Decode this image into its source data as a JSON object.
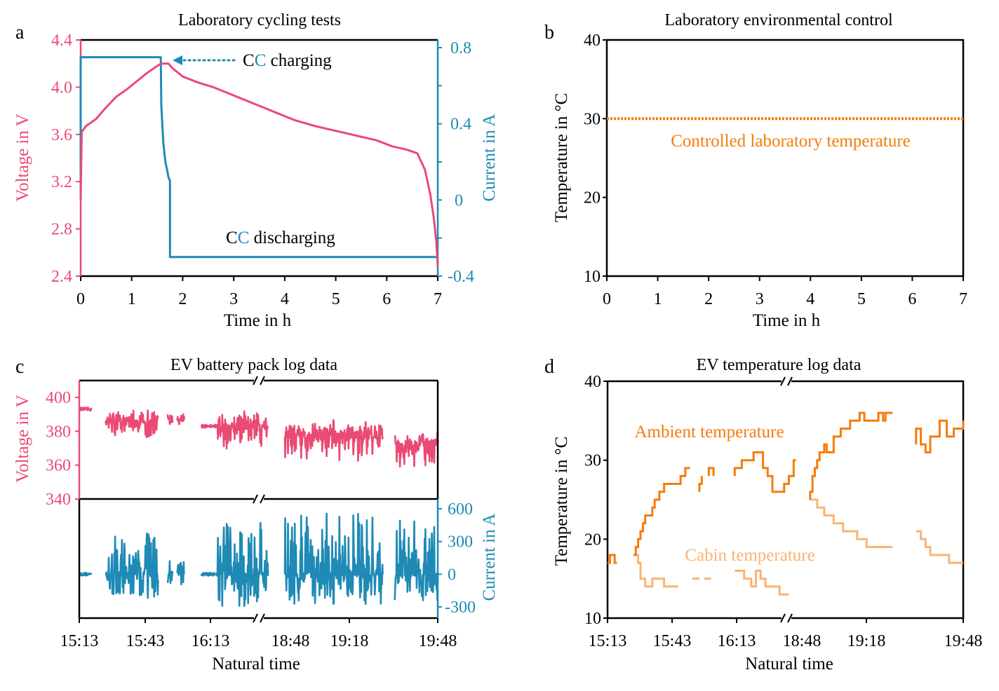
{
  "colors": {
    "voltage": "#ea4a74",
    "current": "#1f8ab5",
    "ambient": "#f57c0c",
    "cabin": "#fbb373",
    "lab_temp": "#f57c0c",
    "axis": "#000000"
  },
  "chart_data": [
    {
      "id": "a",
      "type": "line",
      "panel_letter": "a",
      "title": "Laboratory cycling tests",
      "xlabel": "Time in h",
      "ylabel": "Voltage in V",
      "y2label": "Current in A",
      "xlim": [
        0,
        7
      ],
      "ylim": [
        2.4,
        4.4
      ],
      "y2lim": [
        -0.4,
        0.85
      ],
      "xticks": [
        "0",
        "1",
        "2",
        "3",
        "4",
        "5",
        "6",
        "7"
      ],
      "xtick_values": [
        0,
        1,
        2,
        3,
        4,
        5,
        6,
        7
      ],
      "yticks": [
        "2.4",
        "2.8",
        "3.2",
        "3.6",
        "4.0",
        "4.4"
      ],
      "ytick_values": [
        2.4,
        2.8,
        3.2,
        3.6,
        4.0,
        4.4
      ],
      "y2ticks": [
        "-0.4",
        "0",
        "0.4",
        "0.8"
      ],
      "y2tick_values": [
        -0.4,
        0,
        0.4,
        0.8
      ],
      "annotations": [
        {
          "prefix": "C",
          "highlight": "C",
          "suffix": " charging",
          "x": 3.3,
          "y": 4.2
        },
        {
          "prefix": "C",
          "highlight": "C",
          "suffix": " discharging",
          "x": 2.9,
          "y": 2.74
        }
      ],
      "series": [
        {
          "name": "Voltage",
          "axis": "left",
          "color_key": "voltage",
          "x": [
            0,
            0.02,
            0.1,
            0.3,
            0.5,
            0.7,
            0.9,
            1.1,
            1.3,
            1.5,
            1.58,
            1.62,
            1.72,
            1.8,
            2.0,
            2.3,
            2.6,
            3.0,
            3.4,
            3.8,
            4.2,
            4.6,
            5.0,
            5.4,
            5.8,
            6.1,
            6.4,
            6.6,
            6.75,
            6.85,
            6.92,
            6.97,
            7.0
          ],
          "y": [
            3.05,
            3.62,
            3.67,
            3.73,
            3.83,
            3.92,
            3.98,
            4.05,
            4.12,
            4.18,
            4.2,
            4.2,
            4.2,
            4.16,
            4.09,
            4.04,
            4.0,
            3.93,
            3.86,
            3.79,
            3.72,
            3.67,
            3.63,
            3.59,
            3.55,
            3.5,
            3.47,
            3.44,
            3.3,
            3.1,
            2.9,
            2.7,
            2.48
          ]
        },
        {
          "name": "Current",
          "axis": "right",
          "color_key": "current",
          "x": [
            0,
            0.0,
            1.57,
            1.58,
            1.6,
            1.62,
            1.66,
            1.7,
            1.72,
            1.75,
            1.75,
            7.0
          ],
          "y": [
            0.0,
            0.75,
            0.75,
            0.5,
            0.4,
            0.3,
            0.2,
            0.15,
            0.12,
            0.1,
            -0.3,
            -0.3
          ]
        }
      ]
    },
    {
      "id": "b",
      "type": "line",
      "panel_letter": "b",
      "title": "Laboratory environmental control",
      "xlabel": "Time in h",
      "ylabel": "Temperature in °C",
      "xlim": [
        0,
        7
      ],
      "ylim": [
        10,
        40
      ],
      "xticks": [
        "0",
        "1",
        "2",
        "3",
        "4",
        "5",
        "6",
        "7"
      ],
      "xtick_values": [
        0,
        1,
        2,
        3,
        4,
        5,
        6,
        7
      ],
      "yticks": [
        "10",
        "20",
        "30",
        "40"
      ],
      "ytick_values": [
        10,
        20,
        30,
        40
      ],
      "annotations": [
        {
          "text": "Controlled laboratory temperature",
          "x": 3.6,
          "y": 27
        }
      ],
      "series": [
        {
          "name": "Controlled laboratory temperature",
          "color_key": "lab_temp",
          "style": "dotted",
          "x": [
            0,
            7
          ],
          "y": [
            30,
            30
          ]
        }
      ]
    },
    {
      "id": "c",
      "type": "line",
      "panel_letter": "c",
      "title": "EV battery pack log data",
      "xlabel": "Natural time",
      "ylabel": "Voltage in V",
      "y2label": "Current in A",
      "x_axis_break": true,
      "xticks": [
        "15:13",
        "15:43",
        "16:13",
        "18:48",
        "19:18",
        "19:48"
      ],
      "xtick_values": [
        0,
        30,
        60,
        90,
        120,
        150
      ],
      "xlim": [
        0,
        150
      ],
      "ylim": [
        340,
        410
      ],
      "yticks": [
        "340",
        "360",
        "380",
        "400"
      ],
      "ytick_values": [
        340,
        360,
        380,
        400
      ],
      "y2lim": [
        -350,
        650
      ],
      "y2ticks": [
        "-300",
        "0",
        "300",
        "600"
      ],
      "y2tick_values": [
        -300,
        0,
        300,
        600
      ],
      "segments_minutes": [
        [
          0,
          5
        ],
        [
          11,
          33
        ],
        [
          37,
          39
        ],
        [
          41,
          44
        ],
        [
          51,
          79
        ],
        [
          86,
          127
        ],
        [
          132,
          150
        ]
      ],
      "series": [
        {
          "name": "Voltage",
          "axis": "left",
          "color_key": "voltage",
          "mean_by_segment": [
            393,
            386,
            387,
            388,
            383,
            378,
            372
          ],
          "range_by_segment": [
            [
              387,
              395
            ],
            [
              365,
              401
            ],
            [
              382,
              390
            ],
            [
              384,
              390
            ],
            [
              364,
              394
            ],
            [
              358,
              389
            ],
            [
              345,
              385
            ]
          ]
        },
        {
          "name": "Current",
          "axis": "right",
          "color_key": "current",
          "mean_by_segment": [
            0,
            0,
            0,
            0,
            0,
            0,
            0
          ],
          "range_by_segment": [
            [
              -20,
              30
            ],
            [
              -230,
              400
            ],
            [
              -90,
              140
            ],
            [
              -170,
              150
            ],
            [
              -300,
              480
            ],
            [
              -290,
              560
            ],
            [
              -240,
              550
            ]
          ]
        }
      ]
    },
    {
      "id": "d",
      "type": "line",
      "panel_letter": "d",
      "title": "EV temperature log data",
      "xlabel": "Natural time",
      "ylabel": "Temperature in °C",
      "x_axis_break": true,
      "xticks": [
        "15:13",
        "15:43",
        "16:13",
        "18:48",
        "19:18",
        "19:48"
      ],
      "xtick_values": [
        0,
        30,
        60,
        91,
        121,
        151
      ],
      "xlim": [
        0,
        151
      ],
      "ylim": [
        10,
        40
      ],
      "yticks": [
        "10",
        "20",
        "30",
        "40"
      ],
      "ytick_values": [
        10,
        20,
        30,
        40
      ],
      "annotations": [
        {
          "text": "Ambient temperature",
          "color_key": "ambient",
          "x": 33,
          "y": 34
        },
        {
          "text": "Cabin temperature",
          "color_key": "cabin",
          "x": 40,
          "y": 18.8
        }
      ],
      "series": [
        {
          "name": "Ambient temperature",
          "color_key": "ambient",
          "segments": [
            {
              "x": [
                0,
                1,
                1,
                3,
                3,
                4
              ],
              "y": [
                17,
                17,
                18,
                18,
                17,
                17
              ]
            },
            {
              "x": [
                11,
                12,
                12,
                13,
                13,
                14,
                14,
                15,
                15,
                16,
                16,
                19,
                19,
                20,
                20,
                22,
                22,
                24,
                24,
                26,
                26,
                31,
                31,
                33,
                33,
                35
              ],
              "y": [
                18,
                18,
                19,
                19,
                20,
                20,
                21,
                21,
                22,
                22,
                23,
                23,
                24,
                24,
                25,
                25,
                26,
                26,
                27,
                27,
                27,
                27,
                28,
                28,
                29,
                29
              ]
            },
            {
              "x": [
                39,
                39,
                40,
                40
              ],
              "y": [
                26,
                27,
                27,
                28
              ]
            },
            {
              "x": [
                43,
                43,
                45,
                45
              ],
              "y": [
                28,
                29,
                29,
                28
              ]
            },
            {
              "x": [
                54,
                54,
                57,
                57,
                62,
                62,
                66,
                66,
                68,
                68,
                70,
                70,
                75,
                75,
                77,
                77,
                79,
                79,
                80
              ],
              "y": [
                28,
                29,
                29,
                30,
                30,
                31,
                31,
                29,
                29,
                28,
                28,
                26,
                26,
                27,
                27,
                28,
                28,
                30,
                30
              ]
            },
            {
              "x": [
                86,
                86,
                87,
                87,
                88,
                88,
                89,
                89,
                90,
                90,
                92,
                92,
                93,
                93,
                96,
                96,
                99,
                99,
                103,
                103,
                107,
                107,
                109,
                109,
                115,
                115,
                117,
                117,
                118,
                118,
                121
              ],
              "y": [
                25,
                26,
                26,
                28,
                28,
                29,
                29,
                30,
                30,
                31,
                31,
                32,
                32,
                31,
                31,
                33,
                33,
                34,
                34,
                35,
                35,
                36,
                36,
                35,
                35,
                36,
                36,
                35,
                35,
                36,
                36
              ]
            },
            {
              "x": [
                131,
                131,
                133,
                133,
                135,
                135,
                137,
                137,
                141,
                141,
                144,
                144,
                147,
                147,
                151,
                151
              ],
              "y": [
                32,
                34,
                34,
                32,
                32,
                31,
                31,
                33,
                33,
                35,
                35,
                33,
                33,
                34,
                34,
                35
              ]
            }
          ]
        },
        {
          "name": "Cabin temperature",
          "color_key": "cabin",
          "segments": [
            {
              "x": [
                11,
                13,
                13,
                14,
                14,
                16,
                16,
                19,
                19,
                24,
                24,
                30
              ],
              "y": [
                18,
                18,
                17,
                17,
                15,
                15,
                14,
                14,
                15,
                15,
                14,
                14
              ]
            },
            {
              "x": [
                36,
                39
              ],
              "y": [
                15,
                15
              ]
            },
            {
              "x": [
                41,
                44
              ],
              "y": [
                15,
                15
              ]
            },
            {
              "x": [
                54,
                58,
                58,
                61,
                61,
                63,
                63,
                65,
                65,
                67,
                67,
                70,
                70,
                73,
                73,
                75,
                75,
                77
              ],
              "y": [
                16,
                16,
                15,
                15,
                14,
                14,
                16,
                16,
                15,
                15,
                14,
                14,
                14,
                14,
                13,
                13,
                13,
                13
              ]
            },
            {
              "x": [
                86,
                89,
                89,
                92,
                92,
                96,
                96,
                100,
                100,
                106,
                106,
                110,
                110,
                112,
                112,
                121
              ],
              "y": [
                25,
                25,
                24,
                24,
                23,
                23,
                22,
                22,
                21,
                21,
                20,
                20,
                19,
                19,
                19,
                19
              ]
            },
            {
              "x": [
                131,
                133,
                133,
                135,
                135,
                137,
                137,
                140,
                140,
                145,
                145,
                151
              ],
              "y": [
                21,
                21,
                20,
                20,
                19,
                19,
                18,
                18,
                18,
                18,
                17,
                17
              ]
            }
          ]
        }
      ]
    }
  ]
}
